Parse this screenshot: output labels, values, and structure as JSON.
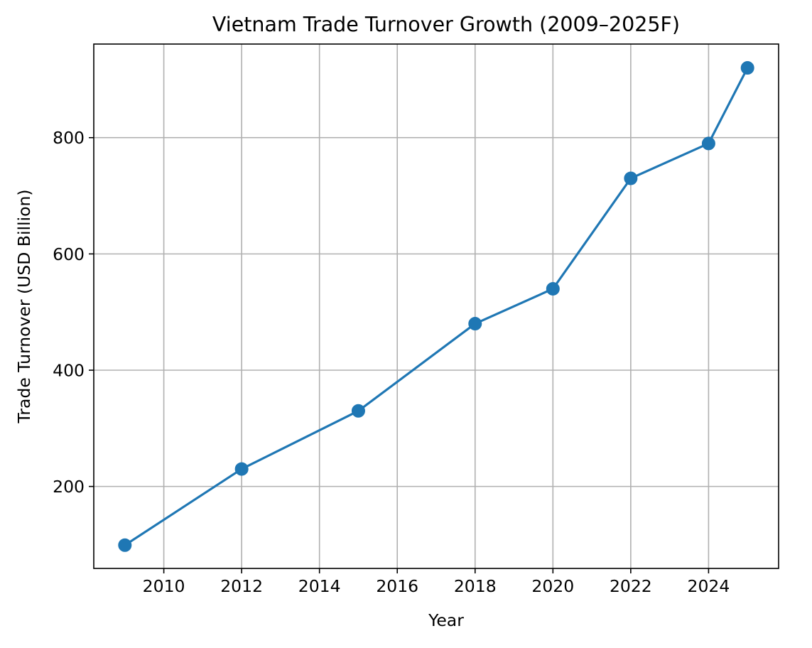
{
  "chart_data": {
    "type": "line",
    "title": "Vietnam Trade Turnover Growth (2009–2025F)",
    "xlabel": "Year",
    "ylabel": "Trade Turnover (USD Billion)",
    "x": [
      2009,
      2012,
      2015,
      2018,
      2020,
      2022,
      2024,
      2025
    ],
    "series": [
      {
        "values": [
          99,
          230,
          330,
          480,
          540,
          730,
          790,
          920
        ],
        "color": "#1f77b4",
        "marker": "circle"
      }
    ],
    "xlim": [
      2008.2,
      2025.8
    ],
    "ylim": [
      59,
      961
    ],
    "xticks": [
      2010,
      2012,
      2014,
      2016,
      2018,
      2020,
      2022,
      2024
    ],
    "xtick_labels": [
      "2010",
      "2012",
      "2014",
      "2016",
      "2018",
      "2020",
      "2022",
      "2024"
    ],
    "yticks": [
      200,
      400,
      600,
      800
    ],
    "ytick_labels": [
      "200",
      "400",
      "600",
      "800"
    ],
    "grid": true,
    "legend": false
  }
}
